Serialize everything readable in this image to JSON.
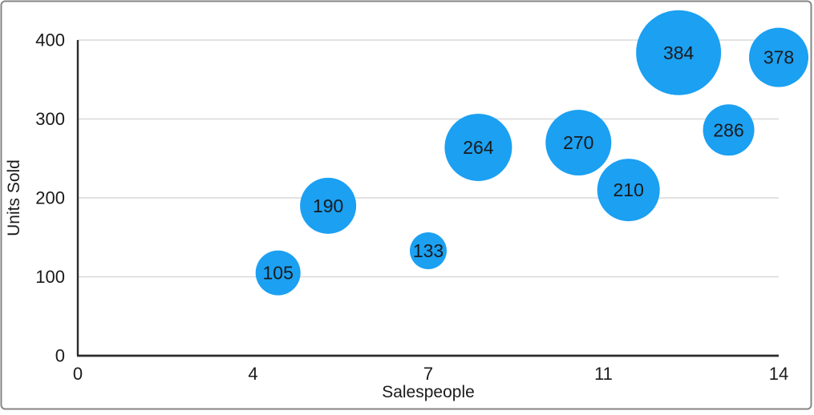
{
  "figure": {
    "background": "#ffffff",
    "frame_border_color": "#858585"
  },
  "chart_data": {
    "type": "scatter",
    "subtype": "bubble",
    "title": "",
    "xlabel": "Salespeople",
    "ylabel": "Units Sold",
    "xlim": [
      0,
      14
    ],
    "ylim": [
      0,
      400
    ],
    "grid": "horizontal",
    "legend": "none",
    "x_ticks": [
      {
        "value": 0,
        "label": "0"
      },
      {
        "value": 3.5,
        "label": "4"
      },
      {
        "value": 7,
        "label": "7"
      },
      {
        "value": 10.5,
        "label": "11"
      },
      {
        "value": 14,
        "label": "14"
      }
    ],
    "y_ticks": [
      {
        "value": 0,
        "label": "0"
      },
      {
        "value": 100,
        "label": "100"
      },
      {
        "value": 200,
        "label": "200"
      },
      {
        "value": 300,
        "label": "300"
      },
      {
        "value": 400,
        "label": "400"
      }
    ],
    "series": [
      {
        "name": "Units Sold",
        "color": "#1BA0F2",
        "points": [
          {
            "x": 4,
            "y": 105,
            "label": "105",
            "bubble_radius_px": 28
          },
          {
            "x": 5,
            "y": 190,
            "label": "190",
            "bubble_radius_px": 35
          },
          {
            "x": 7,
            "y": 133,
            "label": "133",
            "bubble_radius_px": 23
          },
          {
            "x": 8,
            "y": 264,
            "label": "264",
            "bubble_radius_px": 42
          },
          {
            "x": 10,
            "y": 270,
            "label": "270",
            "bubble_radius_px": 41
          },
          {
            "x": 11,
            "y": 210,
            "label": "210",
            "bubble_radius_px": 39
          },
          {
            "x": 12,
            "y": 384,
            "label": "384",
            "bubble_radius_px": 53
          },
          {
            "x": 13,
            "y": 286,
            "label": "286",
            "bubble_radius_px": 32
          },
          {
            "x": 14,
            "y": 378,
            "label": "378",
            "bubble_radius_px": 37
          }
        ]
      }
    ],
    "colors": {
      "bubble": "#1BA0F2",
      "gridline": "#d8d8d8",
      "axis": "#2b2b2b",
      "text": "#1a1a1a"
    }
  }
}
